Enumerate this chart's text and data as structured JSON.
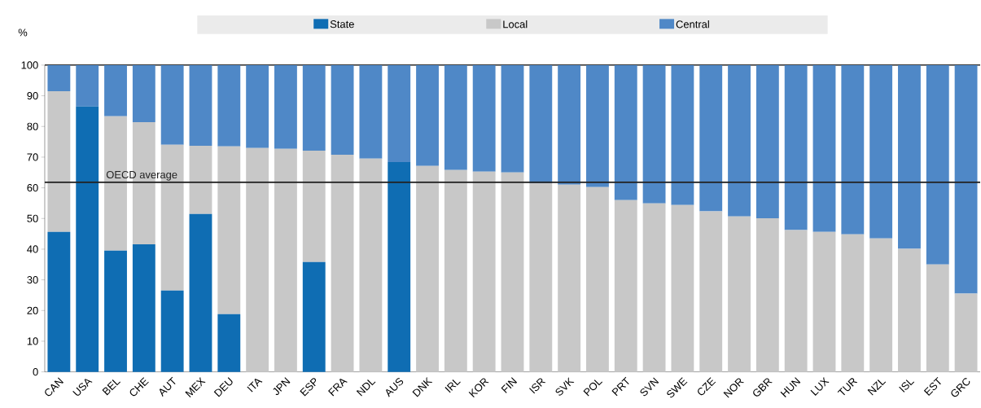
{
  "chart_data": {
    "type": "bar",
    "stacked": true,
    "ylabel": "%",
    "categories": [
      "CAN",
      "USA",
      "BEL",
      "CHE",
      "AUT",
      "MEX",
      "DEU",
      "ITA",
      "JPN",
      "ESP",
      "FRA",
      "NDL",
      "AUS",
      "DNK",
      "IRL",
      "KOR",
      "FIN",
      "ISR",
      "SVK",
      "POL",
      "PRT",
      "SVN",
      "SWE",
      "CZE",
      "NOR",
      "GBR",
      "HUN",
      "LUX",
      "TUR",
      "NZL",
      "ISL",
      "EST",
      "GRC"
    ],
    "series": [
      {
        "name": "State",
        "color": "#0f6db3",
        "values": [
          45.6,
          86.5,
          39.5,
          41.6,
          26.5,
          51.5,
          18.8,
          null,
          null,
          35.8,
          null,
          null,
          68.4,
          null,
          null,
          null,
          null,
          null,
          null,
          null,
          null,
          null,
          null,
          null,
          null,
          null,
          null,
          null,
          null,
          null,
          null,
          null,
          null
        ]
      },
      {
        "name": "Local",
        "color": "#c8c8c8",
        "values": [
          45.9,
          null,
          43.8,
          39.8,
          47.5,
          22.2,
          54.7,
          73.0,
          72.7,
          36.3,
          70.8,
          69.5,
          null,
          67.1,
          65.8,
          65.3,
          65.0,
          61.5,
          61.0,
          60.2,
          56.0,
          54.9,
          54.4,
          52.3,
          50.7,
          50.1,
          46.2,
          45.6,
          44.8,
          43.5,
          40.1,
          35.0,
          25.5
        ]
      },
      {
        "name": "Central",
        "color": "#4f88c7",
        "values": [
          8.5,
          13.5,
          16.7,
          18.6,
          26.0,
          26.3,
          26.5,
          27.0,
          27.3,
          27.9,
          29.2,
          30.5,
          31.6,
          32.9,
          34.2,
          34.7,
          35.0,
          38.5,
          39.0,
          39.8,
          44.0,
          45.1,
          45.6,
          47.7,
          49.3,
          49.9,
          53.8,
          54.4,
          55.2,
          56.5,
          59.9,
          65.0,
          74.5
        ]
      }
    ],
    "ylim": [
      0,
      100
    ],
    "yticks": [
      0,
      10,
      20,
      30,
      40,
      50,
      60,
      70,
      80,
      90,
      100
    ],
    "ref_lines": [
      {
        "axis": "y",
        "value": 61.8,
        "label": "OECD average",
        "color": "#222222"
      }
    ],
    "legend": "top",
    "grid": false
  }
}
